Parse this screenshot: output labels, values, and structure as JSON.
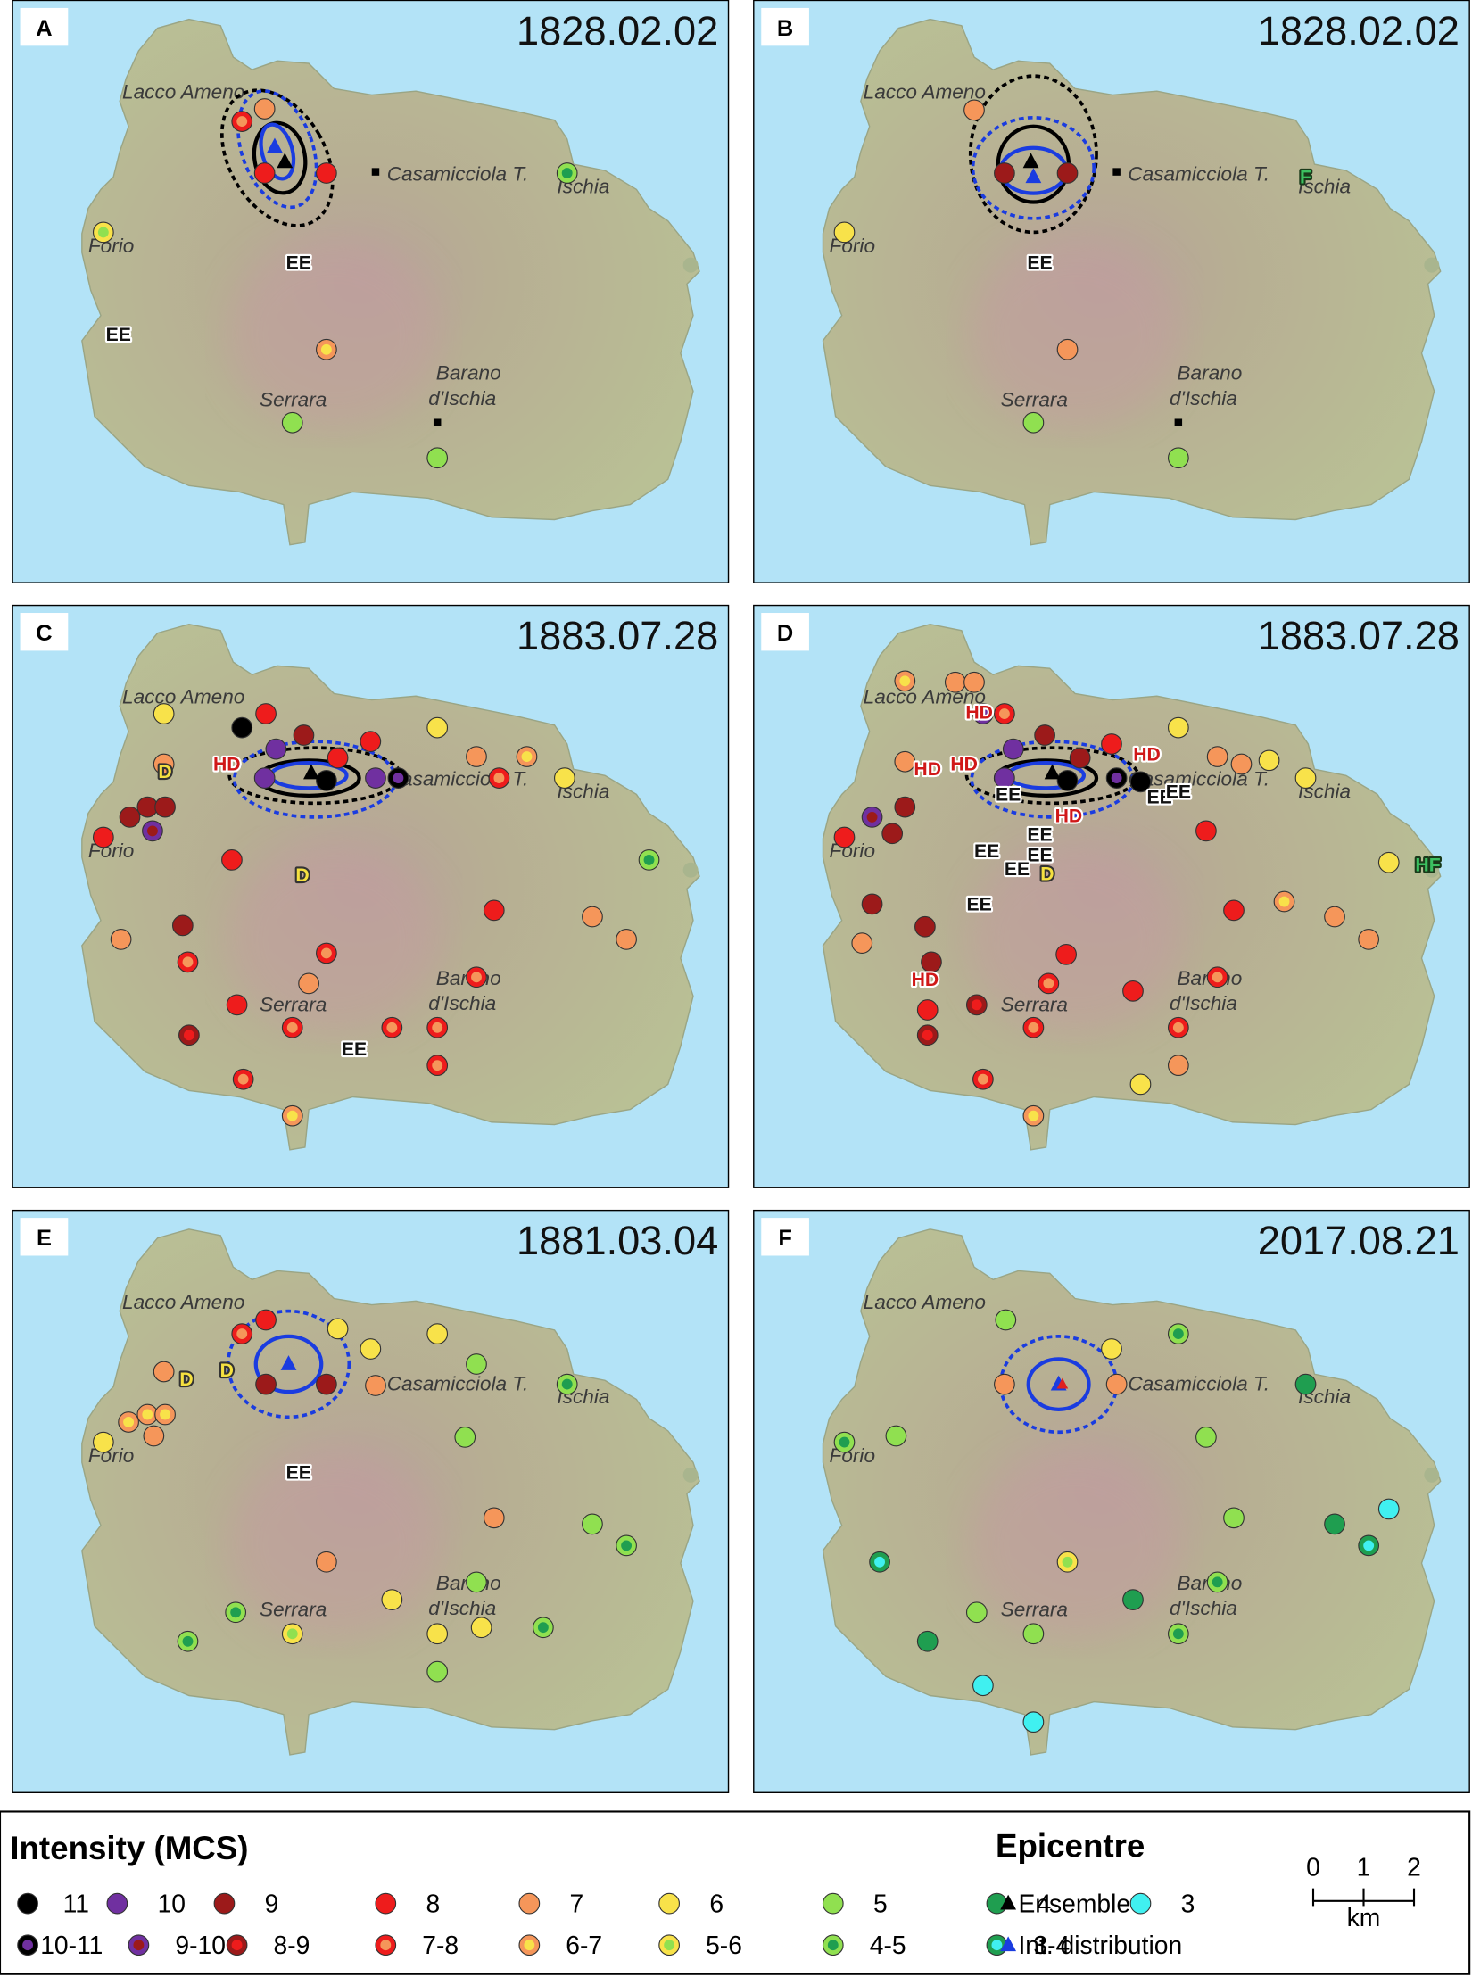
{
  "panels": [
    {
      "letter": "A",
      "date": "1828.02.02",
      "places": [
        "Lacco Ameno",
        "Casamicciola T.",
        "Ischia",
        "Forio",
        "Serrara",
        "Barano",
        "d'Ischia"
      ],
      "effects": [
        {
          "label": "EE",
          "color": "#111111",
          "outline": "#ffffff"
        },
        {
          "label": "EE",
          "color": "#111111",
          "outline": "#ffffff"
        }
      ]
    },
    {
      "letter": "B",
      "date": "1828.02.02",
      "places": [
        "Lacco Ameno",
        "Casamicciola T.",
        "Ischia",
        "Forio",
        "Serrara",
        "Barano",
        "d'Ischia"
      ],
      "effects": [
        {
          "label": "EE",
          "color": "#111111",
          "outline": "#ffffff"
        },
        {
          "label": "F",
          "color": "#3cc060",
          "outline": "#1a3a1a"
        }
      ]
    },
    {
      "letter": "C",
      "date": "1883.07.28",
      "places": [
        "Lacco Ameno",
        "Casamicciola T.",
        "Ischia",
        "Forio",
        "Serrara",
        "Barano",
        "d'Ischia"
      ],
      "effects": [
        {
          "label": "D",
          "color": "#f5e040",
          "outline": "#333333"
        },
        {
          "label": "HD",
          "color": "#d01818",
          "outline": "#ffffff"
        },
        {
          "label": "D",
          "color": "#f5e040",
          "outline": "#333333"
        },
        {
          "label": "EE",
          "color": "#111111",
          "outline": "#ffffff"
        }
      ]
    },
    {
      "letter": "D",
      "date": "1883.07.28",
      "places": [
        "Lacco Ameno",
        "Casamicciola T.",
        "Ischia",
        "Forio",
        "Serrara",
        "Barano",
        "d'Ischia"
      ],
      "effects": [
        {
          "label": "HD",
          "color": "#d01818",
          "outline": "#ffffff"
        },
        {
          "label": "HD",
          "color": "#d01818",
          "outline": "#ffffff"
        },
        {
          "label": "HD",
          "color": "#d01818",
          "outline": "#ffffff"
        },
        {
          "label": "HD",
          "color": "#d01818",
          "outline": "#ffffff"
        },
        {
          "label": "HD",
          "color": "#d01818",
          "outline": "#ffffff"
        },
        {
          "label": "HD",
          "color": "#d01818",
          "outline": "#ffffff"
        },
        {
          "label": "EE",
          "color": "#111111",
          "outline": "#ffffff"
        },
        {
          "label": "EE",
          "color": "#111111",
          "outline": "#ffffff"
        },
        {
          "label": "EE",
          "color": "#111111",
          "outline": "#ffffff"
        },
        {
          "label": "EE",
          "color": "#111111",
          "outline": "#ffffff"
        },
        {
          "label": "EE",
          "color": "#111111",
          "outline": "#ffffff"
        },
        {
          "label": "EE",
          "color": "#111111",
          "outline": "#ffffff"
        },
        {
          "label": "EE",
          "color": "#111111",
          "outline": "#ffffff"
        },
        {
          "label": "EE",
          "color": "#111111",
          "outline": "#ffffff"
        },
        {
          "label": "D",
          "color": "#f5e040",
          "outline": "#333333"
        },
        {
          "label": "HF",
          "color": "#3cc060",
          "outline": "#1a3a1a"
        }
      ]
    },
    {
      "letter": "E",
      "date": "1881.03.04",
      "places": [
        "Lacco Ameno",
        "Casamicciola T.",
        "Ischia",
        "Forio",
        "Serrara",
        "Barano",
        "d'Ischia"
      ],
      "effects": [
        {
          "label": "D",
          "color": "#f5e040",
          "outline": "#333333"
        },
        {
          "label": "D",
          "color": "#f5e040",
          "outline": "#333333"
        },
        {
          "label": "EE",
          "color": "#111111",
          "outline": "#ffffff"
        }
      ]
    },
    {
      "letter": "F",
      "date": "2017.08.21",
      "places": [
        "Lacco Ameno",
        "Casamicciola T.",
        "Ischia",
        "Forio",
        "Serrara",
        "Barano",
        "d'Ischia"
      ]
    }
  ],
  "legend": {
    "intensity_title": "Intensity (MCS)",
    "classes": [
      {
        "label": "11",
        "color": "#000000"
      },
      {
        "label": "10",
        "color": "#7030a0"
      },
      {
        "label": "9",
        "color": "#9c1a1a"
      },
      {
        "label": "8",
        "color": "#ee1c1c"
      },
      {
        "label": "7",
        "color": "#f5965a"
      },
      {
        "label": "6",
        "color": "#f8e24a"
      },
      {
        "label": "5",
        "color": "#90e050"
      },
      {
        "label": "4",
        "color": "#1f9e50"
      },
      {
        "label": "3",
        "color": "#40f0f0"
      }
    ],
    "half_classes": [
      {
        "label": "10-11",
        "outer": "#000000",
        "inner": "#7030a0"
      },
      {
        "label": "9-10",
        "outer": "#7030a0",
        "inner": "#9c1a1a"
      },
      {
        "label": "8-9",
        "outer": "#9c1a1a",
        "inner": "#ee1c1c"
      },
      {
        "label": "7-8",
        "outer": "#ee1c1c",
        "inner": "#f5965a"
      },
      {
        "label": "6-7",
        "outer": "#f5965a",
        "inner": "#f8e24a"
      },
      {
        "label": "5-6",
        "outer": "#f8e24a",
        "inner": "#90e050"
      },
      {
        "label": "4-5",
        "outer": "#90e050",
        "inner": "#1f9e50"
      },
      {
        "label": "3-4",
        "outer": "#1f9e50",
        "inner": "#40f0f0"
      }
    ],
    "epicentre_title": "Epicentre",
    "epicentres": [
      {
        "label": "Ensemble",
        "color": "#000000"
      },
      {
        "label": "Int. distribution",
        "color": "#1a3ce0"
      }
    ],
    "scale": {
      "ticks": [
        0,
        1,
        2
      ],
      "unit": "km"
    }
  }
}
